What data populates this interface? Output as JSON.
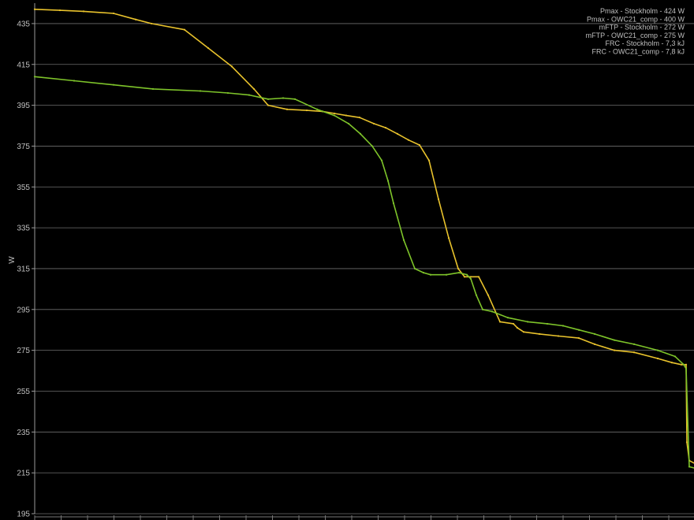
{
  "chart_data": {
    "type": "line",
    "title": "",
    "xlabel": "",
    "ylabel": "W",
    "ylim": [
      195,
      445
    ],
    "yticks": [
      195,
      215,
      235,
      255,
      275,
      295,
      315,
      335,
      355,
      375,
      395,
      415,
      435
    ],
    "grid": true,
    "legend_placement": "top-right",
    "legend": [
      "Pmax - Stockholm - 424 W",
      "Pmax - OWC21_comp - 400 W",
      "mFTP - Stockholm - 272 W",
      "mFTP - OWC21_comp - 275 W",
      "FRC - Stockholm - 7,3 kJ",
      "FRC - OWC21_comp - 7,8 kJ"
    ],
    "series": [
      {
        "color": "#e8c22c",
        "x": [
          0,
          32,
          62,
          100,
          128,
          148,
          190,
          220,
          250,
          278,
          296,
          320,
          345,
          365,
          380,
          395,
          412,
          430,
          445,
          460,
          474,
          488,
          500,
          512,
          525,
          537,
          545,
          553,
          563,
          575,
          590,
          607,
          612,
          620,
          640,
          664,
          690,
          710,
          735,
          760,
          790,
          808,
          820,
          826,
          827,
          830,
          840,
          850,
          857
        ],
        "y": [
          442,
          441.5,
          441,
          440,
          437,
          435,
          432,
          423,
          414,
          403,
          395,
          393,
          392.5,
          392,
          391,
          390,
          389,
          386,
          384,
          381,
          378,
          375.5,
          368,
          349,
          330,
          315,
          311,
          311,
          311,
          302,
          289,
          288,
          286,
          284,
          283,
          282,
          281,
          278,
          275,
          274,
          271,
          269,
          268,
          268,
          230,
          221,
          219,
          217,
          216.5
        ]
      },
      {
        "color": "#7ec42a",
        "x": [
          0,
          50,
          100,
          150,
          210,
          245,
          272,
          296,
          315,
          330,
          358,
          380,
          398,
          413,
          428,
          440,
          448,
          455,
          468,
          482,
          493,
          502,
          522,
          538,
          548,
          553,
          560,
          568,
          580,
          600,
          625,
          650,
          670,
          690,
          710,
          735,
          760,
          790,
          812,
          823,
          826,
          830,
          840,
          850,
          857,
          863,
          868
        ],
        "y": [
          409,
          407,
          405,
          403,
          402,
          401,
          400,
          398,
          398.5,
          398,
          393,
          390,
          386,
          381,
          375,
          368,
          358,
          347,
          329,
          315,
          313,
          312,
          312,
          313,
          312,
          310,
          302,
          295,
          294,
          291,
          289,
          288,
          287,
          285,
          283,
          280,
          278,
          275,
          272,
          268,
          266,
          218,
          217,
          216,
          214,
          210,
          195
        ]
      }
    ]
  }
}
